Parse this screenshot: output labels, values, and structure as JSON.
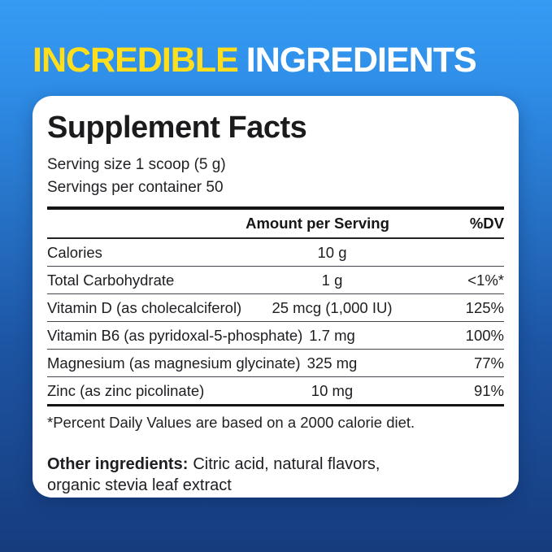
{
  "headline": {
    "highlight": "INCREDIBLE",
    "rest": "INGREDIENTS",
    "highlight_color": "#FFDE1E",
    "rest_color": "#FFFFFF"
  },
  "background": {
    "gradient_top": "#359BF3",
    "gradient_bottom": "#163C7D"
  },
  "panel": {
    "title": "Supplement Facts",
    "serving_size": "Serving size 1 scoop (5 g)",
    "servings_per_container": "Servings per container 50",
    "columns": {
      "amount": "Amount per Serving",
      "dv": "%DV"
    },
    "rows": [
      {
        "name": "Calories",
        "amount": "10 g",
        "dv": ""
      },
      {
        "name": "Total Carbohydrate",
        "amount": "1 g",
        "dv": "<1%*"
      },
      {
        "name": "Vitamin D (as cholecalciferol)",
        "amount": "25 mcg (1,000 IU)",
        "dv": "125%"
      },
      {
        "name": "Vitamin B6 (as pyridoxal-5-phosphate)",
        "amount": "1.7 mg",
        "dv": "100%"
      },
      {
        "name": "Magnesium (as magnesium glycinate)",
        "amount": "325 mg",
        "dv": "77%"
      },
      {
        "name": "Zinc (as zinc picolinate)",
        "amount": "10 mg",
        "dv": "91%"
      }
    ],
    "footnote": "*Percent Daily Values are based on a 2000 calorie diet.",
    "other_ingredients_label": "Other ingredients:",
    "other_ingredients_text": "Citric acid, natural flavors, organic stevia leaf extract"
  }
}
